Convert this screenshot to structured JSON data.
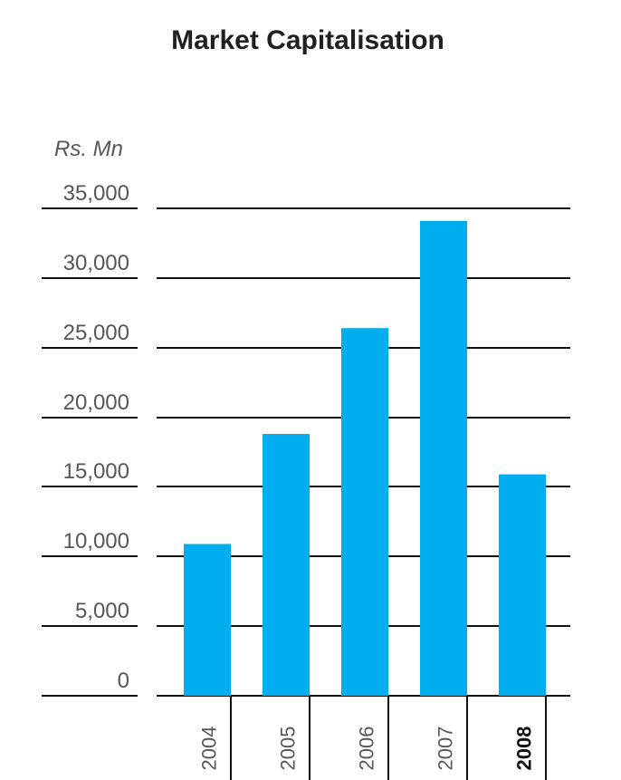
{
  "chart_data": {
    "type": "bar",
    "title": "Market Capitalisation",
    "unit_label": "Rs. Mn",
    "categories": [
      "2004",
      "2005",
      "2006",
      "2007",
      "2008"
    ],
    "values": [
      10900,
      18800,
      26400,
      34100,
      15900
    ],
    "highlight_category": "2008",
    "y_ticks": [
      "35,000",
      "30,000",
      "25,000",
      "20,000",
      "15,000",
      "10,000",
      "5,000",
      "0"
    ],
    "y_tick_values": [
      35000,
      30000,
      25000,
      20000,
      15000,
      10000,
      5000,
      0
    ],
    "ylim": [
      0,
      35000
    ],
    "grid": true,
    "legend": false,
    "bar_color": "#00adef"
  }
}
